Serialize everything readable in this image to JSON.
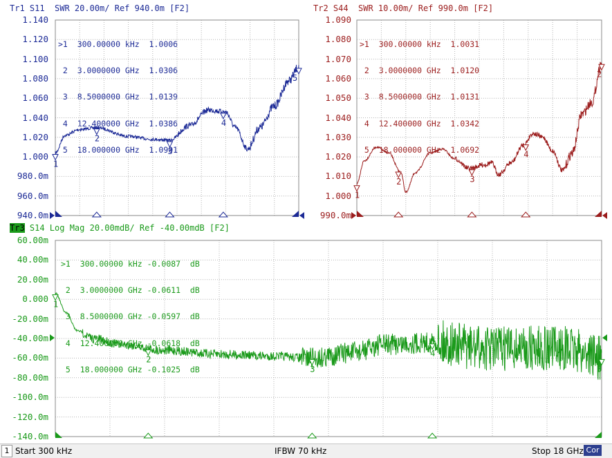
{
  "trace1": {
    "title": "Tr1 S11  SWR 20.00m/ Ref 940.0m [F2]",
    "color": "#1c2a96",
    "y_labels": [
      "1.140",
      "1.120",
      "1.100",
      "1.080",
      "1.060",
      "1.040",
      "1.020",
      "1.000",
      "980.0m",
      "960.0m",
      "940.0m"
    ],
    "markers": [
      ">1  300.00000 kHz  1.0006",
      " 2  3.0000000 GHz  1.0306",
      " 3  8.5000000 GHz  1.0139",
      " 4  12.400000 GHz  1.0386",
      " 5  18.000000 GHz  1.0901"
    ]
  },
  "trace2": {
    "title": "Tr2 S44  SWR 10.00m/ Ref 990.0m [F2]",
    "color": "#9b1c1c",
    "y_labels": [
      "1.090",
      "1.080",
      "1.070",
      "1.060",
      "1.050",
      "1.040",
      "1.030",
      "1.020",
      "1.010",
      "1.000",
      "990.0m"
    ],
    "markers": [
      ">1  300.00000 kHz  1.0031",
      " 2  3.0000000 GHz  1.0120",
      " 3  8.5000000 GHz  1.0131",
      " 4  12.400000 GHz  1.0342",
      " 5  18.000000 GHz  1.0692"
    ]
  },
  "trace3": {
    "tag": "Tr3",
    "title": " S14 Log Mag 20.00mdB/ Ref -40.00mdB [F2]",
    "color": "#1a9a1a",
    "y_labels": [
      "60.00m",
      "40.00m",
      "20.00m",
      "0.000",
      "-20.00m",
      "-40.00m",
      "-60.00m",
      "-80.00m",
      "-100.0m",
      "-120.0m",
      "-140.0m"
    ],
    "markers": [
      ">1  300.00000 kHz -0.0087  dB",
      " 2  3.0000000 GHz -0.0611  dB",
      " 3  8.5000000 GHz -0.0597  dB",
      " 4  12.400000 GHz -0.0618  dB",
      " 5  18.000000 GHz -0.1025  dB"
    ]
  },
  "status": {
    "channel": "1",
    "start": "Start 300 kHz",
    "ifbw": "IFBW 70 kHz",
    "stop": "Stop 18 GHz",
    "cor": "Cor"
  }
}
